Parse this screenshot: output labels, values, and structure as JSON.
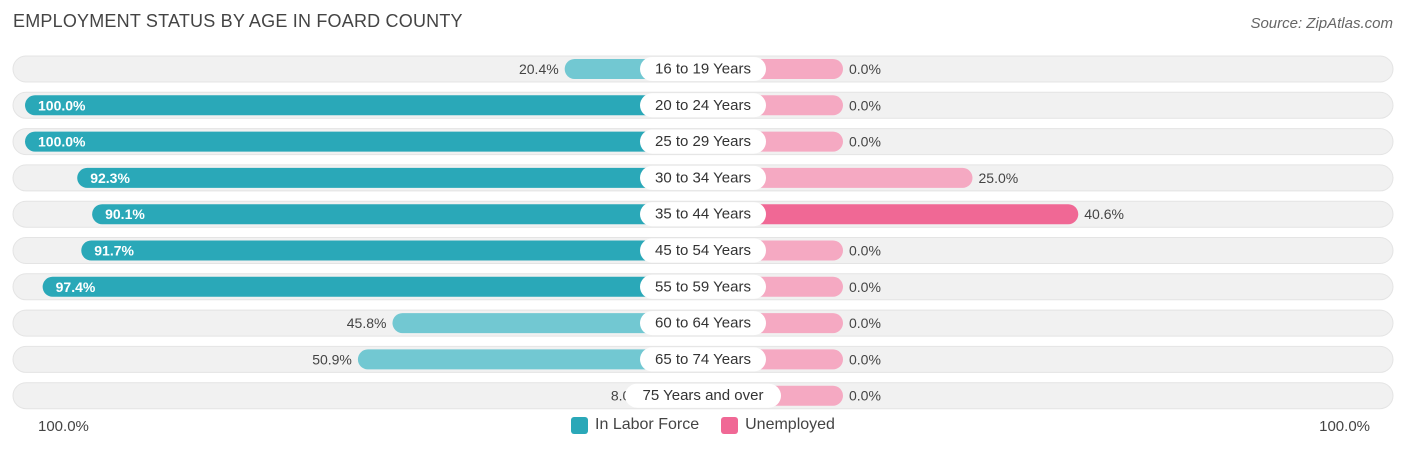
{
  "header": {
    "title": "EMPLOYMENT STATUS BY AGE IN FOARD COUNTY",
    "source": "Source: ZipAtlas.com"
  },
  "axis": {
    "left_label": "100.0%",
    "right_label": "100.0%"
  },
  "legend": [
    {
      "label": "In Labor Force",
      "color": "#2aa8b8"
    },
    {
      "label": "Unemployed",
      "color": "#f06895"
    }
  ],
  "colors": {
    "labor_strong": "#2aa8b8",
    "labor_light": "#72c8d2",
    "unemp_strong": "#f06895",
    "unemp_light": "#f5a9c2",
    "track": "#f0f0f0"
  },
  "chart_data": {
    "type": "bar",
    "title": "EMPLOYMENT STATUS BY AGE IN FOARD COUNTY",
    "orientation": "diverging-horizontal",
    "xlim": [
      0,
      100
    ],
    "categories": [
      "16 to 19 Years",
      "20 to 24 Years",
      "25 to 29 Years",
      "30 to 34 Years",
      "35 to 44 Years",
      "45 to 54 Years",
      "55 to 59 Years",
      "60 to 64 Years",
      "65 to 74 Years",
      "75 Years and over"
    ],
    "series": [
      {
        "name": "In Labor Force",
        "values": [
          20.4,
          100.0,
          100.0,
          92.3,
          90.1,
          91.7,
          97.4,
          45.8,
          50.9,
          8.0
        ],
        "labels": [
          "20.4%",
          "100.0%",
          "100.0%",
          "92.3%",
          "90.1%",
          "91.7%",
          "97.4%",
          "45.8%",
          "50.9%",
          "8.0%"
        ]
      },
      {
        "name": "Unemployed",
        "values": [
          0.0,
          0.0,
          0.0,
          25.0,
          40.6,
          0.0,
          0.0,
          0.0,
          0.0,
          0.0
        ],
        "labels": [
          "0.0%",
          "0.0%",
          "0.0%",
          "25.0%",
          "40.6%",
          "0.0%",
          "0.0%",
          "0.0%",
          "0.0%",
          "0.0%"
        ]
      }
    ]
  }
}
